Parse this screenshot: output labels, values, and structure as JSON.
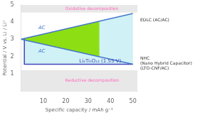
{
  "chart_data": {
    "type": "line",
    "xlabel": "Specific capacity / mAh g⁻¹",
    "ylabel": "Potential / V vs. Li / Li⁺",
    "xlim": [
      0,
      52
    ],
    "ylim": [
      0,
      5
    ],
    "xticks": [
      10,
      20,
      30,
      40,
      50
    ],
    "yticks": [
      1,
      2,
      3,
      4,
      5
    ],
    "grid": false,
    "legend": false,
    "series": [
      {
        "name": "AC",
        "color": "#4477CC",
        "x": [
          0.0,
          50.0
        ],
        "values": [
          3.0,
          4.5
        ]
      },
      {
        "name": "AC",
        "color": "#4477CC",
        "x": [
          0.0,
          50.0
        ],
        "values": [
          3.0,
          1.55
        ]
      },
      {
        "name": "Li₄Ti₅O₁₂ (1.55 V)",
        "color": "#4444BB",
        "x": [
          1.5,
          1.5,
          50.0
        ],
        "values": [
          3.0,
          1.55,
          1.55
        ]
      }
    ],
    "bands": [
      {
        "from": 4.55,
        "to": 5,
        "color": "#CCCCCC"
      },
      {
        "from": 0,
        "to": 1.2,
        "color": "#CCCCCC"
      }
    ],
    "areas": [
      {
        "color": "#C8EEF5",
        "x": [
          1.5,
          50.0,
          50.0,
          1.5
        ],
        "values": [
          3.0,
          4.5,
          1.55,
          1.55
        ]
      },
      {
        "color": "#88DD00",
        "x": [
          0.0,
          35.0,
          35.0
        ],
        "values": [
          3.0,
          4.05,
          1.985
        ]
      }
    ],
    "annotations": [
      {
        "text": "Oxidative decomposition",
        "color": "#FF66BB"
      },
      {
        "text": "Reductive decomposition",
        "color": "#FF66BB"
      },
      {
        "text": "EDLC (AC/AC)"
      },
      {
        "text": "NHC\n(Nano Hybrid Capacitor)\n(LTO-CNF/AC)"
      }
    ]
  }
}
